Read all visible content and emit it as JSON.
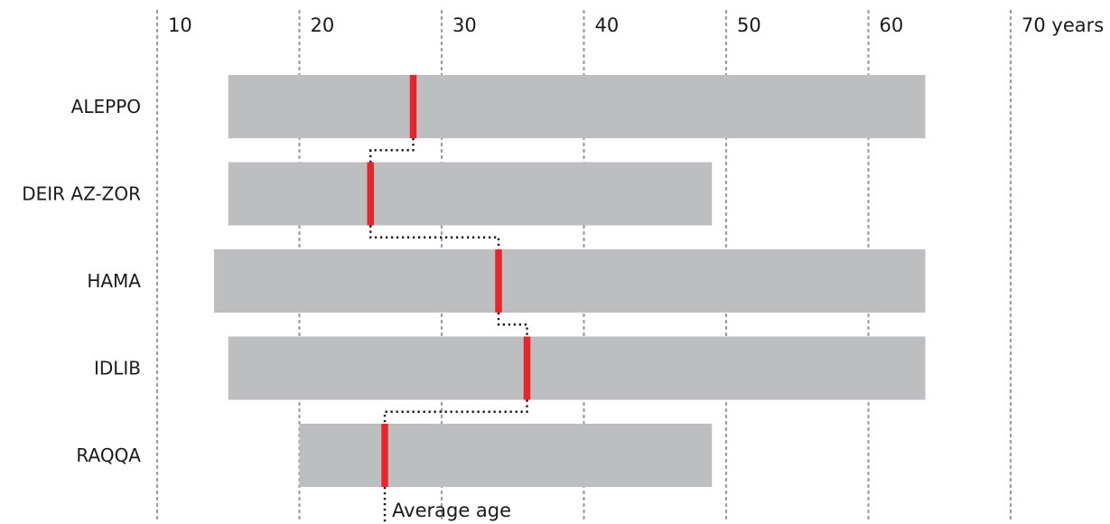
{
  "chart_data": {
    "type": "bar",
    "orientation": "horizontal",
    "unit": "years",
    "xlim": [
      10,
      70
    ],
    "x_ticks": [
      {
        "value": 10,
        "label": "10"
      },
      {
        "value": 20,
        "label": "20"
      },
      {
        "value": 30,
        "label": "30"
      },
      {
        "value": 40,
        "label": "40"
      },
      {
        "value": 50,
        "label": "50"
      },
      {
        "value": 60,
        "label": "60"
      },
      {
        "value": 70,
        "label": "70 years"
      }
    ],
    "grid": true,
    "categories": [
      "ALEPPO",
      "DEIR AZ-ZOR",
      "HAMA",
      "IDLIB",
      "RAQQA"
    ],
    "ranges": [
      {
        "min": 15,
        "max": 64
      },
      {
        "min": 15,
        "max": 49
      },
      {
        "min": 14,
        "max": 64
      },
      {
        "min": 15,
        "max": 64
      },
      {
        "min": 20,
        "max": 49
      }
    ],
    "average_age": [
      28,
      25,
      34,
      36,
      26
    ],
    "annotation": "Average age",
    "colors": {
      "range": "#bdbec0",
      "average": "#e6262c",
      "grid": "#9a9a9a",
      "connector": "#111111"
    }
  }
}
